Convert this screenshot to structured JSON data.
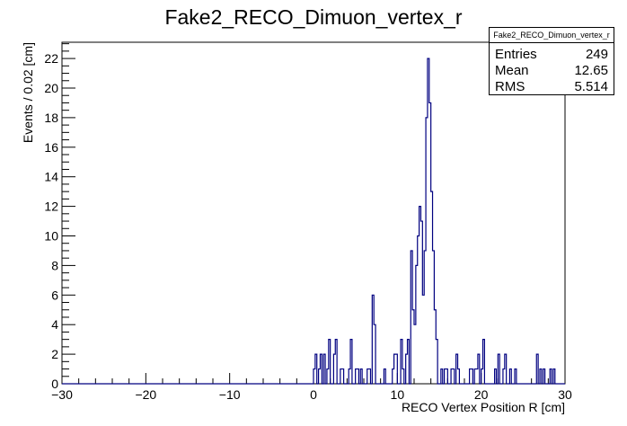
{
  "chart_data": {
    "type": "histogram",
    "title": "Fake2_RECO_Dimuon_vertex_r",
    "xlabel": "RECO Vertex Position R [cm]",
    "ylabel": "Events / 0.02 [cm]",
    "xlim": [
      -30,
      30
    ],
    "ylim": [
      0,
      23.1
    ],
    "x_ticks": [
      "−30",
      "−20",
      "−10",
      "0",
      "10",
      "20",
      "30"
    ],
    "y_ticks": [
      "0",
      "2",
      "4",
      "6",
      "8",
      "10",
      "12",
      "14",
      "16",
      "18",
      "20",
      "22"
    ],
    "line_color": "#000080",
    "stats": {
      "name": "Fake2_RECO_Dimuon_vertex_r",
      "rows": [
        {
          "label": "Entries",
          "value": "249"
        },
        {
          "label": "Mean",
          "value": "12.65"
        },
        {
          "label": "RMS",
          "value": "5.514"
        }
      ]
    },
    "bins": [
      {
        "x": 0.0,
        "y": 1
      },
      {
        "x": 0.2,
        "y": 2
      },
      {
        "x": 0.6,
        "y": 1
      },
      {
        "x": 0.8,
        "y": 2
      },
      {
        "x": 1.2,
        "y": 2
      },
      {
        "x": 1.6,
        "y": 1
      },
      {
        "x": 1.8,
        "y": 3
      },
      {
        "x": 2.4,
        "y": 2
      },
      {
        "x": 2.6,
        "y": 3
      },
      {
        "x": 3.2,
        "y": 1
      },
      {
        "x": 3.4,
        "y": 1
      },
      {
        "x": 4.2,
        "y": 1
      },
      {
        "x": 4.4,
        "y": 3
      },
      {
        "x": 5.0,
        "y": 1
      },
      {
        "x": 5.2,
        "y": 1
      },
      {
        "x": 5.6,
        "y": 1
      },
      {
        "x": 6.4,
        "y": 1
      },
      {
        "x": 6.6,
        "y": 1
      },
      {
        "x": 7.0,
        "y": 6
      },
      {
        "x": 7.2,
        "y": 4
      },
      {
        "x": 8.4,
        "y": 1
      },
      {
        "x": 9.4,
        "y": 1
      },
      {
        "x": 9.6,
        "y": 2
      },
      {
        "x": 9.8,
        "y": 2
      },
      {
        "x": 10.4,
        "y": 3
      },
      {
        "x": 10.6,
        "y": 1
      },
      {
        "x": 11.0,
        "y": 2
      },
      {
        "x": 11.2,
        "y": 3
      },
      {
        "x": 11.6,
        "y": 9
      },
      {
        "x": 11.8,
        "y": 5
      },
      {
        "x": 12.0,
        "y": 4
      },
      {
        "x": 12.2,
        "y": 8
      },
      {
        "x": 12.4,
        "y": 10
      },
      {
        "x": 12.6,
        "y": 12
      },
      {
        "x": 12.8,
        "y": 11
      },
      {
        "x": 13.0,
        "y": 6
      },
      {
        "x": 13.2,
        "y": 9
      },
      {
        "x": 13.4,
        "y": 18
      },
      {
        "x": 13.6,
        "y": 22
      },
      {
        "x": 13.8,
        "y": 19
      },
      {
        "x": 14.0,
        "y": 13
      },
      {
        "x": 14.2,
        "y": 9
      },
      {
        "x": 14.4,
        "y": 5
      },
      {
        "x": 14.6,
        "y": 3
      },
      {
        "x": 15.2,
        "y": 1
      },
      {
        "x": 15.6,
        "y": 1
      },
      {
        "x": 15.8,
        "y": 1
      },
      {
        "x": 16.4,
        "y": 1
      },
      {
        "x": 16.6,
        "y": 1
      },
      {
        "x": 17.0,
        "y": 2
      },
      {
        "x": 17.2,
        "y": 1
      },
      {
        "x": 18.6,
        "y": 1
      },
      {
        "x": 18.8,
        "y": 1
      },
      {
        "x": 19.2,
        "y": 1
      },
      {
        "x": 19.4,
        "y": 1
      },
      {
        "x": 19.6,
        "y": 2
      },
      {
        "x": 20.0,
        "y": 1
      },
      {
        "x": 20.2,
        "y": 3
      },
      {
        "x": 21.6,
        "y": 1
      },
      {
        "x": 22.0,
        "y": 2
      },
      {
        "x": 22.6,
        "y": 1
      },
      {
        "x": 22.8,
        "y": 2
      },
      {
        "x": 23.4,
        "y": 1
      },
      {
        "x": 24.0,
        "y": 1
      },
      {
        "x": 26.6,
        "y": 2
      },
      {
        "x": 27.0,
        "y": 1
      },
      {
        "x": 27.4,
        "y": 1
      },
      {
        "x": 28.2,
        "y": 1
      },
      {
        "x": 28.6,
        "y": 1
      }
    ]
  }
}
